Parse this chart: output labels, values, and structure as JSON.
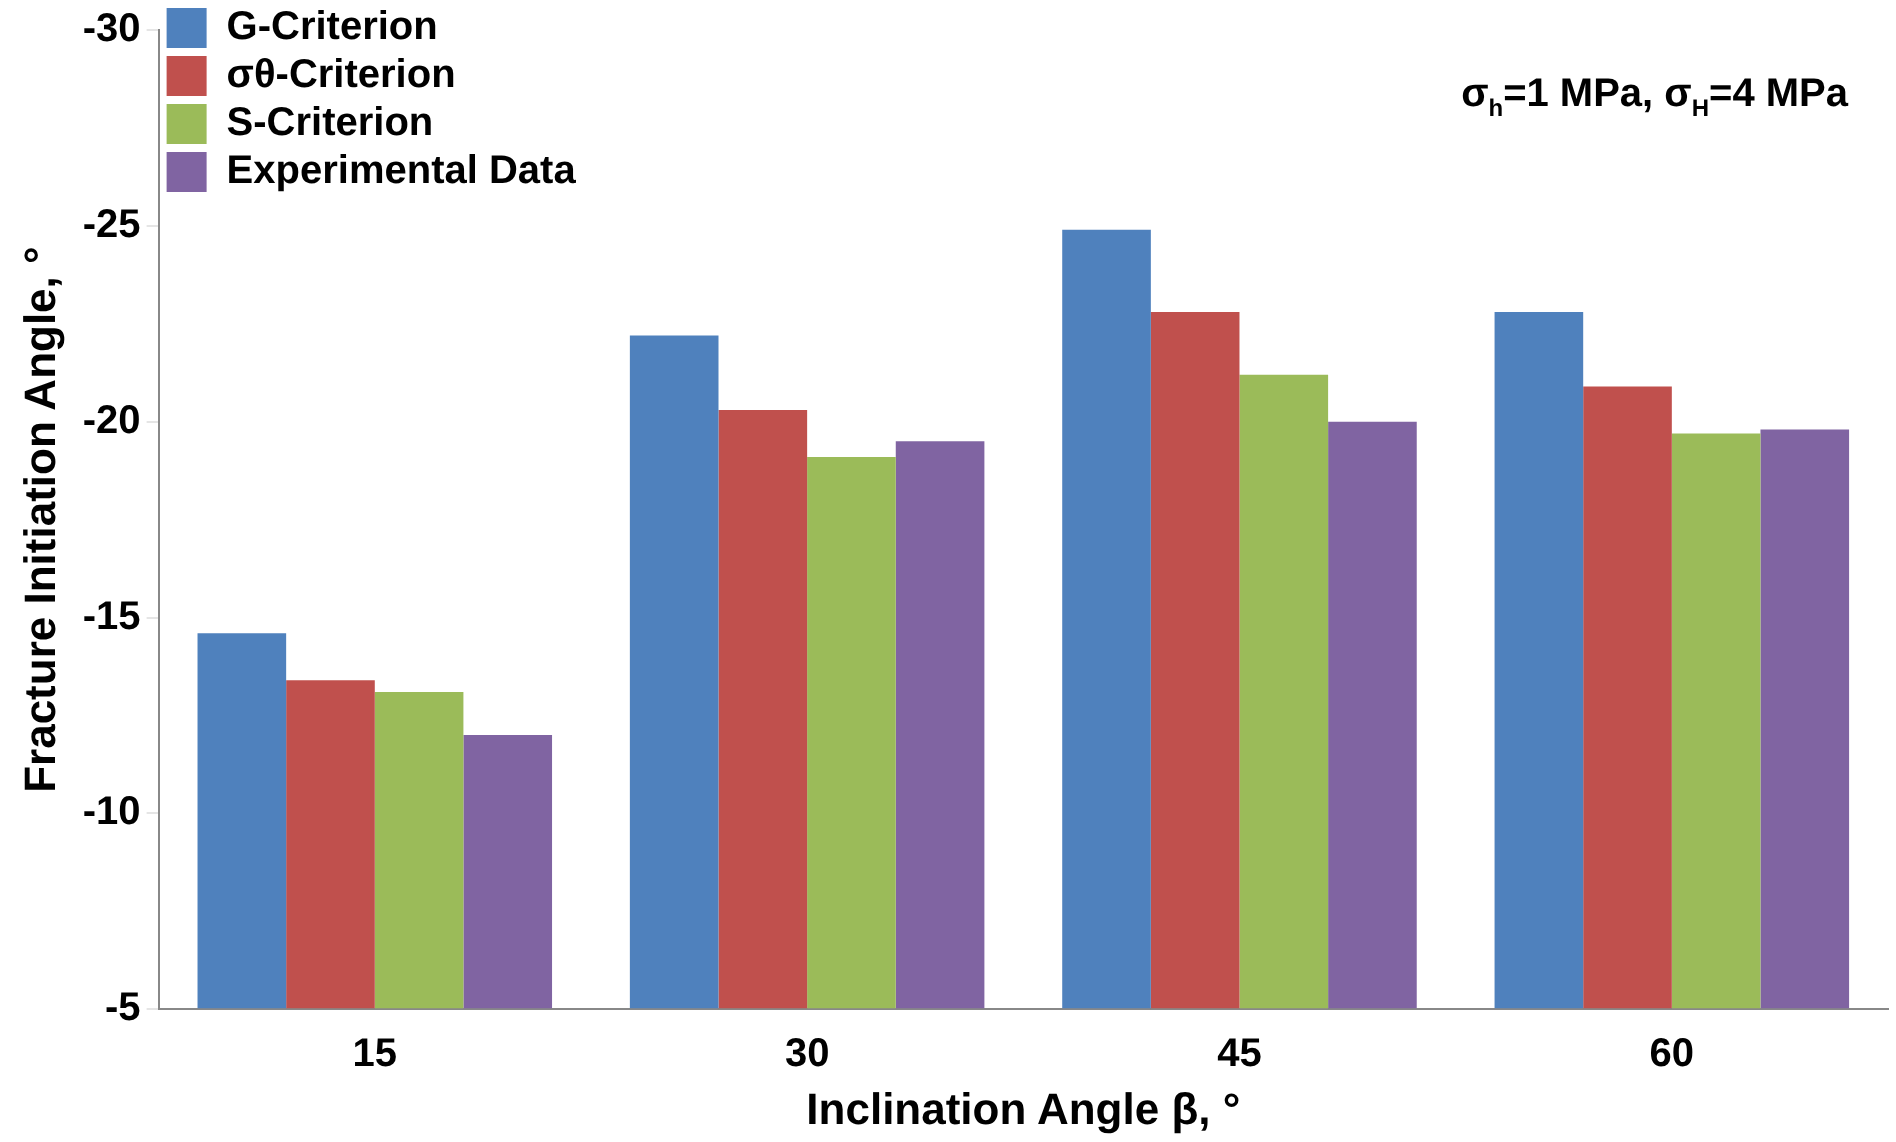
{
  "chart_data": {
    "type": "bar",
    "xlabel": "Inclination Angle β, °",
    "ylabel": "Fracture Initiation Angle, °",
    "categories": [
      "15",
      "30",
      "45",
      "60"
    ],
    "series": [
      {
        "name": "G-Criterion",
        "color": "#4f81bd",
        "values": [
          -14.6,
          -22.2,
          -24.9,
          -22.8
        ]
      },
      {
        "name": "σθ-Criterion",
        "color": "#c0504d",
        "values": [
          -13.4,
          -20.3,
          -22.8,
          -20.9
        ]
      },
      {
        "name": "S-Criterion",
        "color": "#9bbb59",
        "values": [
          -13.1,
          -19.1,
          -21.2,
          -19.7
        ]
      },
      {
        "name": "Experimental Data",
        "color": "#8064a2",
        "values": [
          -12.0,
          -19.5,
          -20.0,
          -19.8
        ]
      }
    ],
    "ylim": [
      -5,
      -30
    ],
    "yticks": [
      -5,
      -10,
      -15,
      -20,
      -25,
      -30
    ],
    "grid": false,
    "legend": "top left",
    "annotations": [
      "σ$_{h}$=1 MPa, σ$_{H}$=4 MPa"
    ]
  }
}
